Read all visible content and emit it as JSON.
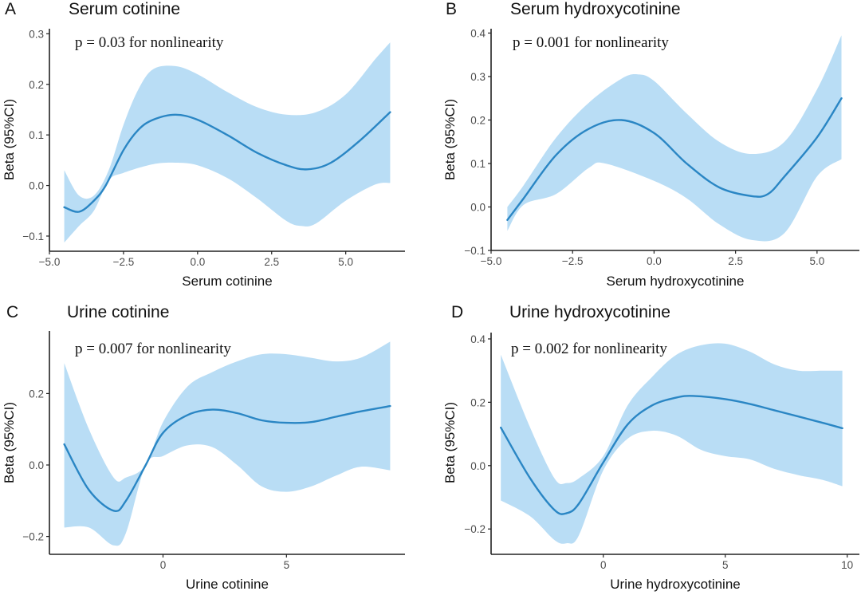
{
  "colors": {
    "line": "#2a86c4",
    "band": "#b9ddf5",
    "axis": "#222222"
  },
  "chart_data": [
    {
      "type": "line",
      "panel_letter": "A",
      "title": "Serum cotinine",
      "annotation": "p = 0.03 for nonlinearity",
      "xlabel": "Serum cotinine",
      "ylabel": "Beta (95%CI)",
      "xlim": [
        -5.0,
        7.0
      ],
      "ylim": [
        -0.13,
        0.31
      ],
      "xticks": [
        -5.0,
        -2.5,
        0.0,
        2.5,
        5.0
      ],
      "xtick_labels": [
        "−5.0",
        "−2.5",
        "0.0",
        "2.5",
        "5.0"
      ],
      "yticks": [
        -0.1,
        0.0,
        0.1,
        0.2,
        0.3
      ],
      "ytick_labels": [
        "−0.1",
        "0.0",
        "0.1",
        "0.2",
        "0.3"
      ],
      "series": [
        {
          "name": "Beta",
          "x": [
            -4.5,
            -4,
            -3.5,
            -3.1,
            -2.5,
            -2,
            -1.5,
            -0.75,
            0,
            1,
            2,
            3,
            3.7,
            4.5,
            5.5,
            6.5
          ],
          "y": [
            -0.043,
            -0.052,
            -0.03,
            0.0,
            0.07,
            0.11,
            0.13,
            0.14,
            0.13,
            0.1,
            0.065,
            0.04,
            0.032,
            0.045,
            0.09,
            0.145
          ]
        },
        {
          "name": "95% CI upper",
          "x": [
            -4.5,
            -4,
            -3.5,
            -3,
            -2.5,
            -2,
            -1.5,
            -0.75,
            0,
            1,
            2,
            3,
            4,
            5,
            6,
            6.5
          ],
          "y": [
            0.03,
            -0.02,
            -0.02,
            0.03,
            0.12,
            0.19,
            0.23,
            0.236,
            0.22,
            0.185,
            0.155,
            0.14,
            0.145,
            0.18,
            0.25,
            0.283
          ]
        },
        {
          "name": "95% CI lower",
          "x": [
            -4.5,
            -4,
            -3.5,
            -3,
            -2.5,
            -1.5,
            -0.75,
            0,
            1,
            2,
            3,
            3.5,
            4,
            5,
            6,
            6.5
          ],
          "y": [
            -0.113,
            -0.08,
            -0.05,
            0.01,
            0.025,
            0.042,
            0.045,
            0.04,
            0.015,
            -0.025,
            -0.07,
            -0.08,
            -0.075,
            -0.03,
            0.002,
            0.005
          ]
        }
      ]
    },
    {
      "type": "line",
      "panel_letter": "B",
      "title": "Serum hydroxycotinine",
      "annotation": "p = 0.001 for nonlinearity",
      "xlabel": "Serum hydroxycotinine",
      "ylabel": "Beta (95%CI)",
      "xlim": [
        -5.0,
        6.3
      ],
      "ylim": [
        -0.1,
        0.41
      ],
      "xticks": [
        -5.0,
        -2.5,
        0.0,
        2.5,
        5.0
      ],
      "xtick_labels": [
        "−5.0",
        "−2.5",
        "0.0",
        "2.5",
        "5.0"
      ],
      "yticks": [
        -0.1,
        0.0,
        0.1,
        0.2,
        0.3,
        0.4
      ],
      "ytick_labels": [
        "−0.1",
        "0.0",
        "0.1",
        "0.2",
        "0.3",
        "0.4"
      ],
      "series": [
        {
          "name": "Beta",
          "x": [
            -4.5,
            -4,
            -3,
            -2,
            -1,
            0,
            1,
            2,
            3,
            3.5,
            4,
            5,
            5.75
          ],
          "y": [
            -0.03,
            0.02,
            0.12,
            0.18,
            0.2,
            0.17,
            0.1,
            0.045,
            0.025,
            0.03,
            0.07,
            0.16,
            0.25
          ]
        },
        {
          "name": "95% CI upper",
          "x": [
            -4.5,
            -4,
            -3,
            -2,
            -1,
            -0.5,
            0,
            1,
            2,
            3,
            4,
            5,
            5.75
          ],
          "y": [
            0.0,
            0.05,
            0.16,
            0.24,
            0.295,
            0.305,
            0.29,
            0.215,
            0.15,
            0.122,
            0.15,
            0.27,
            0.395
          ]
        },
        {
          "name": "95% CI lower",
          "x": [
            -4.5,
            -4,
            -3,
            -2,
            -1.5,
            0,
            1,
            2,
            3,
            4,
            5,
            5.75
          ],
          "y": [
            -0.055,
            0.005,
            0.03,
            0.09,
            0.1,
            0.06,
            0.02,
            -0.04,
            -0.076,
            -0.06,
            0.07,
            0.11
          ]
        }
      ]
    },
    {
      "type": "line",
      "panel_letter": "C",
      "title": "Urine cotinine",
      "annotation": "p = 0.007 for nonlinearity",
      "xlabel": "Urine cotinine",
      "ylabel": "Beta (95%CI)",
      "xlim": [
        -4.6,
        9.8
      ],
      "ylim": [
        -0.25,
        0.375
      ],
      "xticks": [
        0,
        5
      ],
      "xtick_labels": [
        "0",
        "5"
      ],
      "yticks": [
        -0.2,
        0.0,
        0.2
      ],
      "ytick_labels": [
        "−0.2",
        "0.0",
        "0.2"
      ],
      "series": [
        {
          "name": "Beta",
          "x": [
            -4,
            -3,
            -2,
            -1.5,
            -0.7,
            0,
            1,
            2,
            3,
            4,
            5,
            6,
            7,
            8,
            9.2
          ],
          "y": [
            0.058,
            -0.07,
            -0.128,
            -0.1,
            0.0,
            0.09,
            0.14,
            0.155,
            0.145,
            0.125,
            0.118,
            0.12,
            0.135,
            0.15,
            0.165
          ]
        },
        {
          "name": "95% CI upper",
          "x": [
            -4,
            -3,
            -2,
            -1.5,
            -0.7,
            0,
            1,
            2,
            3,
            4,
            5,
            6,
            7,
            8,
            9.2
          ],
          "y": [
            0.285,
            0.1,
            -0.035,
            -0.035,
            0.0,
            0.12,
            0.22,
            0.26,
            0.29,
            0.31,
            0.31,
            0.3,
            0.29,
            0.3,
            0.345
          ]
        },
        {
          "name": "95% CI lower",
          "x": [
            -4,
            -3,
            -2,
            -1.5,
            -0.7,
            0,
            1,
            2,
            3,
            4,
            5,
            6,
            7,
            8,
            9.2
          ],
          "y": [
            -0.175,
            -0.175,
            -0.225,
            -0.19,
            0.0,
            0.025,
            0.055,
            0.05,
            0.0,
            -0.06,
            -0.075,
            -0.06,
            -0.03,
            -0.005,
            -0.015
          ]
        }
      ]
    },
    {
      "type": "line",
      "panel_letter": "D",
      "title": "Urine hydroxycotinine",
      "annotation": "p = 0.002 for nonlinearity",
      "xlabel": "Urine hydroxycotinine",
      "ylabel": "Beta (95%CI)",
      "xlim": [
        -4.6,
        10.5
      ],
      "ylim": [
        -0.28,
        0.42
      ],
      "xticks": [
        0,
        5,
        10
      ],
      "xtick_labels": [
        "0",
        "5",
        "10"
      ],
      "yticks": [
        -0.2,
        0.0,
        0.2,
        0.4
      ],
      "ytick_labels": [
        "−0.2",
        "0.0",
        "0.2",
        "0.4"
      ],
      "series": [
        {
          "name": "Beta",
          "x": [
            -4.2,
            -3,
            -2,
            -1.5,
            -1,
            0,
            1,
            2,
            3,
            3.7,
            5,
            6,
            7,
            8,
            9,
            9.8
          ],
          "y": [
            0.12,
            -0.04,
            -0.14,
            -0.15,
            -0.12,
            0.01,
            0.13,
            0.19,
            0.215,
            0.22,
            0.21,
            0.195,
            0.175,
            0.155,
            0.135,
            0.118
          ]
        },
        {
          "name": "95% CI upper",
          "x": [
            -4.2,
            -3,
            -2,
            -1.5,
            -1,
            0,
            1,
            2,
            3,
            4,
            5,
            6,
            7,
            8,
            9,
            9.8
          ],
          "y": [
            0.35,
            0.12,
            -0.04,
            -0.055,
            -0.04,
            0.03,
            0.19,
            0.28,
            0.35,
            0.38,
            0.385,
            0.36,
            0.32,
            0.3,
            0.3,
            0.3
          ]
        },
        {
          "name": "95% CI lower",
          "x": [
            -4.2,
            -3,
            -2,
            -1.5,
            -1,
            0,
            1,
            2,
            3,
            4,
            5,
            6,
            7,
            8,
            9,
            9.8
          ],
          "y": [
            -0.11,
            -0.16,
            -0.235,
            -0.245,
            -0.22,
            -0.015,
            0.085,
            0.11,
            0.095,
            0.05,
            0.03,
            0.02,
            -0.01,
            -0.03,
            -0.045,
            -0.065
          ]
        }
      ]
    }
  ]
}
